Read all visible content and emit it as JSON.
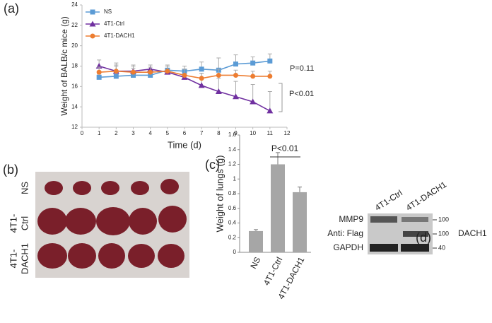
{
  "chart_data": [
    {
      "type": "line",
      "panel_label": "(a)",
      "xlabel": "Time (d)",
      "ylabel": "Weight of BALB/c mice (g)",
      "x": [
        1,
        2,
        3,
        4,
        5,
        6,
        7,
        8,
        9,
        10,
        11
      ],
      "series": [
        {
          "name": "NS",
          "color": "#5b9bd5",
          "marker": "square",
          "values": [
            16.9,
            17.0,
            17.1,
            17.1,
            17.6,
            17.5,
            17.7,
            17.6,
            18.2,
            18.3,
            18.5
          ],
          "errors": [
            0.3,
            1.0,
            0.7,
            0.6,
            0.5,
            0.5,
            0.7,
            1.2,
            0.9,
            0.6,
            0.7
          ]
        },
        {
          "name": "4T1-Ctrl",
          "color": "#7030a0",
          "marker": "triangle",
          "values": [
            18.0,
            17.5,
            17.5,
            17.7,
            17.4,
            16.9,
            16.1,
            15.5,
            15.0,
            14.5,
            13.6
          ],
          "errors": [
            0.6,
            0.8,
            0.6,
            0.4,
            0.6,
            0.8,
            1.2,
            1.3,
            1.5,
            1.7,
            1.9
          ]
        },
        {
          "name": "4T1-DACH1",
          "color": "#ed7d31",
          "marker": "circle",
          "values": [
            17.4,
            17.5,
            17.4,
            17.4,
            17.5,
            17.1,
            16.8,
            17.1,
            17.1,
            17.0,
            17.0
          ],
          "errors": [
            0.5,
            0.6,
            0.6,
            0.5,
            0.5,
            0.6,
            0.5,
            0.6,
            0.5,
            0.5,
            0.5
          ]
        }
      ],
      "xlim": [
        0,
        12
      ],
      "xticks": [
        0,
        1,
        2,
        3,
        4,
        5,
        6,
        7,
        8,
        9,
        10,
        11,
        12
      ],
      "ylim": [
        12,
        24
      ],
      "yticks": [
        12,
        14,
        16,
        18,
        20,
        22,
        24
      ],
      "annotations": [
        "P=0.11",
        "P<0.01"
      ]
    },
    {
      "type": "bar",
      "panel_label": "(c)",
      "ylabel": "Weight of lungs (g)",
      "categories": [
        "NS",
        "4T1-Ctrl",
        "4T1-DACH1"
      ],
      "values": [
        0.29,
        1.2,
        0.82
      ],
      "errors": [
        0.02,
        0.16,
        0.07
      ],
      "color": "#a6a6a6",
      "ylim": [
        0,
        1.6
      ],
      "yticks": [
        0,
        0.2,
        0.4,
        0.6,
        0.8,
        1,
        1.2,
        1.4,
        1.6
      ],
      "annotations": [
        "P<0.01"
      ]
    }
  ],
  "lung_photo": {
    "panel_label": "(b)",
    "rows": [
      [
        "NS"
      ],
      [
        "4T1-",
        "Ctrl"
      ],
      [
        "4T1-",
        "DACH1"
      ]
    ]
  },
  "western_blot": {
    "panel_label": "(d)",
    "lanes": [
      "4T1-Ctrl",
      "4T1-DACH1"
    ],
    "rows": [
      {
        "label": "MMP9",
        "marker": "100"
      },
      {
        "label": "Anti: Flag",
        "marker": "100",
        "target": "DACH1"
      },
      {
        "label": "GAPDH",
        "marker": "40"
      }
    ]
  }
}
